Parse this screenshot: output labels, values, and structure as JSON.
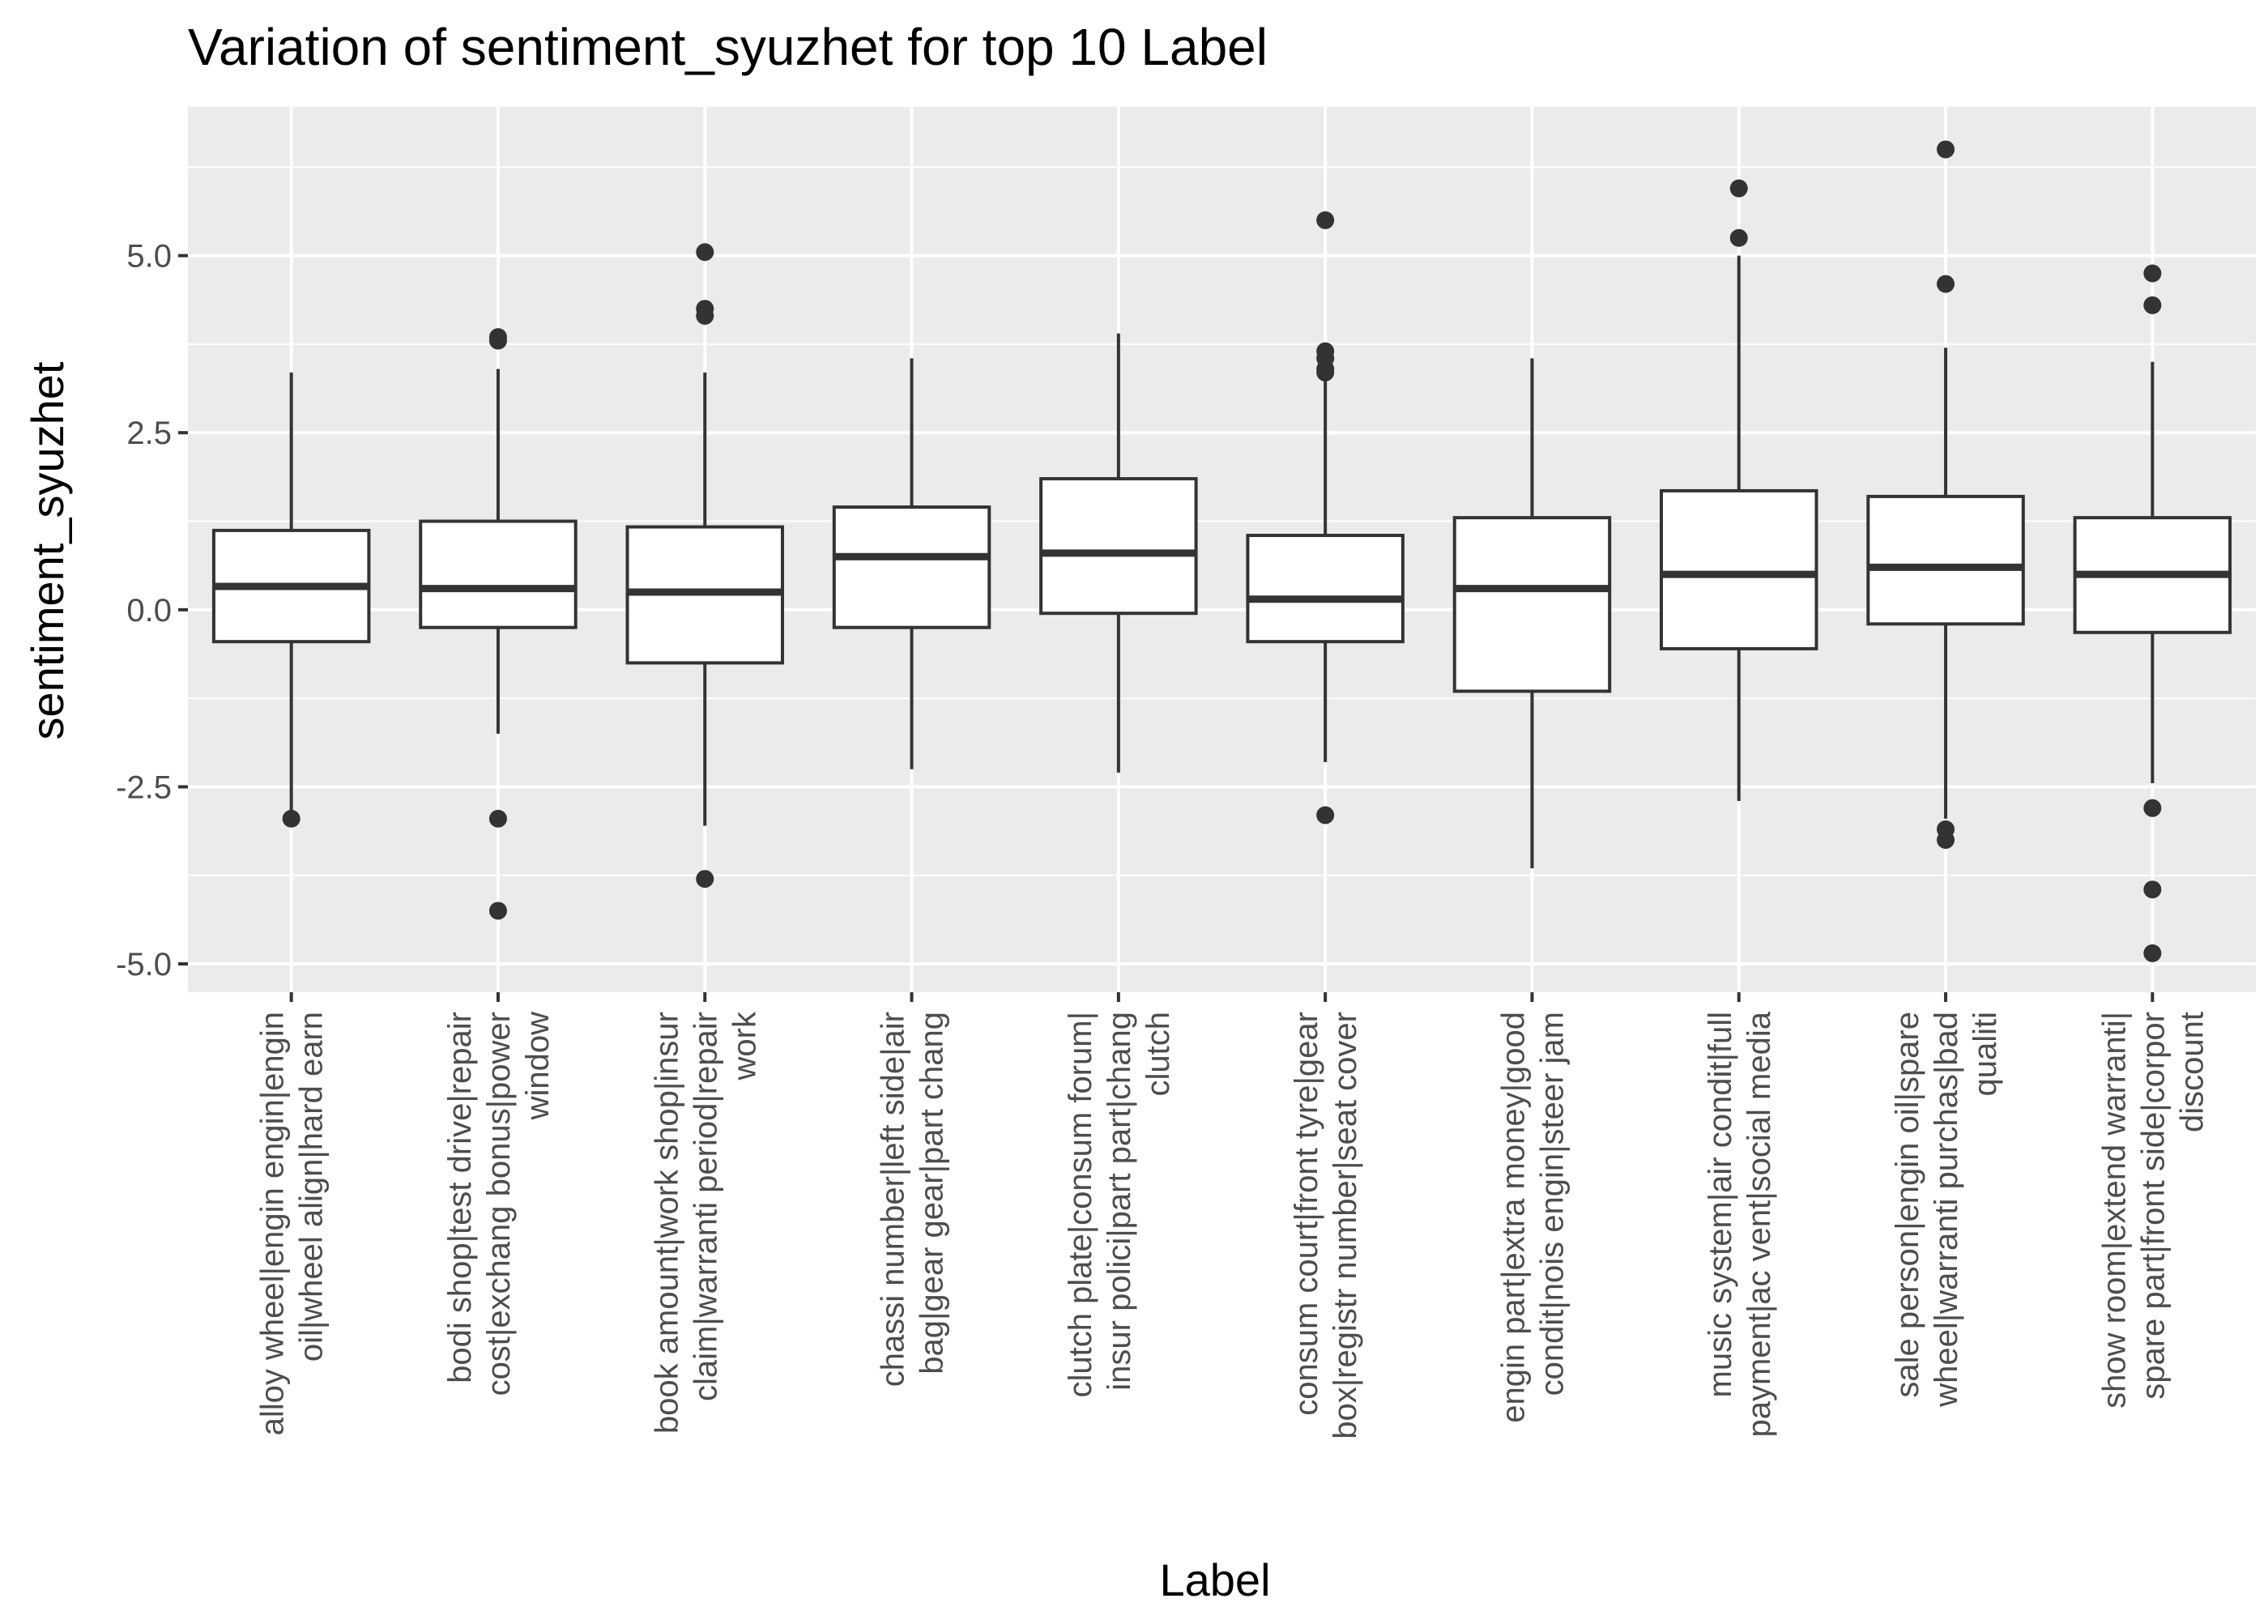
{
  "chart_data": {
    "type": "box",
    "title": "Variation of  sentiment_syuzhet for top 10 Label",
    "xlabel": "Label",
    "ylabel": "sentiment_syuzhet",
    "ylim": [
      -5.4,
      7.1
    ],
    "yticks": [
      -5.0,
      -2.5,
      0.0,
      2.5,
      5.0
    ],
    "ytick_labels": [
      "-5.0",
      "-2.5",
      "0.0",
      "2.5",
      "5.0"
    ],
    "grid": true,
    "panel_background": "#ebebeb",
    "grid_color": "#ffffff",
    "box_fill": "#ffffff",
    "line_color": "#333333",
    "categories": [
      {
        "lines": [
          "alloy wheel|engin engin|engin",
          "oil|wheel align|hard earn"
        ],
        "whisker_low": -2.85,
        "q1": -0.45,
        "median": 0.33,
        "q3": 1.12,
        "whisker_high": 3.35,
        "outliers": [
          -2.95
        ]
      },
      {
        "lines": [
          "bodi shop|test drive|repair",
          "cost|exchang bonus|power",
          "window"
        ],
        "whisker_low": -1.75,
        "q1": -0.25,
        "median": 0.3,
        "q3": 1.25,
        "whisker_high": 3.4,
        "outliers": [
          3.8,
          3.85,
          -2.95,
          -4.25
        ]
      },
      {
        "lines": [
          "book amount|work shop|insur",
          "claim|warranti period|repair",
          "work"
        ],
        "whisker_low": -3.05,
        "q1": -0.75,
        "median": 0.25,
        "q3": 1.17,
        "whisker_high": 3.35,
        "outliers": [
          5.05,
          4.25,
          4.15,
          -3.8
        ]
      },
      {
        "lines": [
          "chassi number|left side|air",
          "bag|gear gear|part chang"
        ],
        "whisker_low": -2.25,
        "q1": -0.25,
        "median": 0.75,
        "q3": 1.45,
        "whisker_high": 3.55,
        "outliers": []
      },
      {
        "lines": [
          "clutch plate|consum forum|",
          "insur polici|part part|chang",
          "clutch"
        ],
        "whisker_low": -2.3,
        "q1": -0.05,
        "median": 0.8,
        "q3": 1.85,
        "whisker_high": 3.9,
        "outliers": []
      },
      {
        "lines": [
          "consum court|front tyre|gear",
          "box|registr number|seat cover"
        ],
        "whisker_low": -2.15,
        "q1": -0.45,
        "median": 0.15,
        "q3": 1.05,
        "whisker_high": 3.3,
        "outliers": [
          5.5,
          3.65,
          3.55,
          3.4,
          3.35,
          -2.9
        ]
      },
      {
        "lines": [
          "engin part|extra money|good",
          "condit|nois engin|steer jam"
        ],
        "whisker_low": -3.65,
        "q1": -1.15,
        "median": 0.3,
        "q3": 1.3,
        "whisker_high": 3.55,
        "outliers": []
      },
      {
        "lines": [
          "music system|air condit|full",
          "payment|ac vent|social media"
        ],
        "whisker_low": -2.7,
        "q1": -0.55,
        "median": 0.5,
        "q3": 1.68,
        "whisker_high": 5.0,
        "outliers": [
          5.95,
          5.25
        ]
      },
      {
        "lines": [
          "sale person|engin oil|spare",
          "wheel|warranti purchas|bad",
          "qualiti"
        ],
        "whisker_low": -2.95,
        "q1": -0.2,
        "median": 0.6,
        "q3": 1.6,
        "whisker_high": 3.7,
        "outliers": [
          6.5,
          4.6,
          -3.1,
          -3.25
        ]
      },
      {
        "lines": [
          "show room|extend warranti|",
          "spare part|front side|corpor",
          "discount"
        ],
        "whisker_low": -2.45,
        "q1": -0.32,
        "median": 0.5,
        "q3": 1.3,
        "whisker_high": 3.5,
        "outliers": [
          4.75,
          4.3,
          -2.8,
          -3.95,
          -4.85
        ]
      }
    ]
  }
}
